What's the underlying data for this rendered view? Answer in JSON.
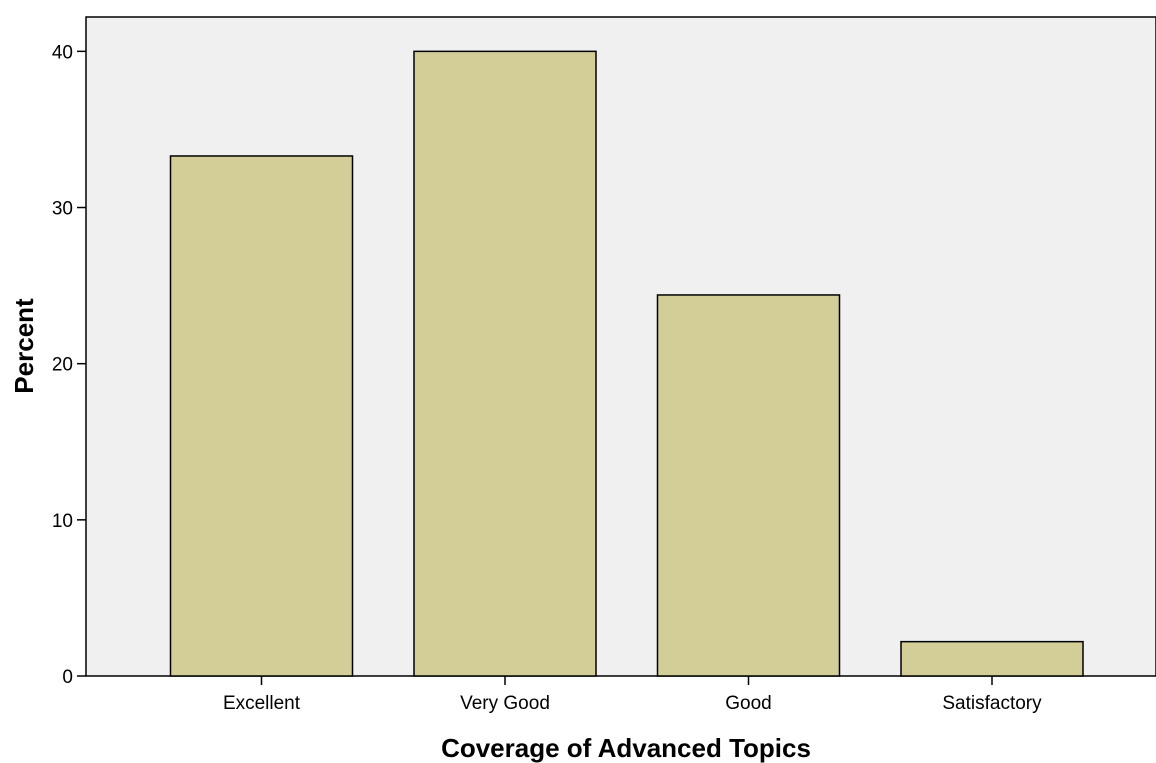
{
  "chart_data": {
    "type": "bar",
    "title": "",
    "xlabel": "Coverage of Advanced Topics",
    "ylabel": "Percent",
    "categories": [
      "Excellent",
      "Very Good",
      "Good",
      "Satisfactory"
    ],
    "values": [
      33.3,
      40.0,
      24.4,
      2.2
    ],
    "ylim": [
      0,
      42.2
    ],
    "yticks": [
      0,
      10,
      20,
      30,
      40
    ],
    "grid": false,
    "legend": "none",
    "colors": {
      "bar_fill": "#d3ce97",
      "bar_stroke": "#000000",
      "plot_background": "#f0f0f0"
    }
  }
}
